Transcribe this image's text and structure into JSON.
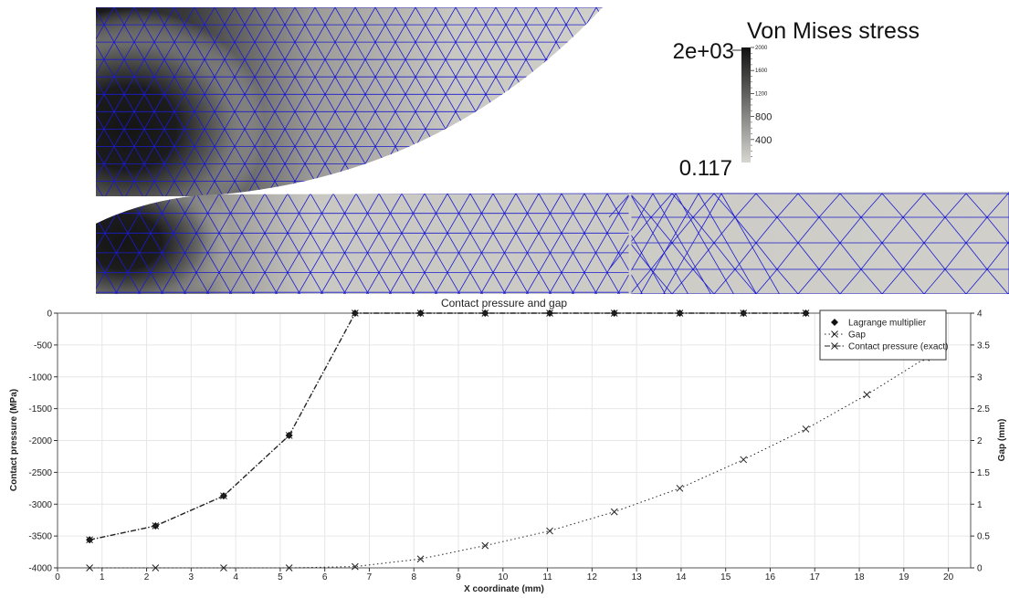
{
  "colorbar": {
    "title": "Von Mises stress",
    "max_label": "2e+03",
    "min_label": "0.117",
    "tick_labels": [
      "2000",
      "1600",
      "1200",
      "800",
      "400"
    ],
    "tick_values": [
      2000,
      1600,
      1200,
      800,
      400
    ],
    "range": [
      0.117,
      2000
    ],
    "gradient": [
      "#111111",
      "#d0cfca"
    ]
  },
  "mesh_colors": {
    "edge": "#1a1ad0",
    "background": "#ffffff"
  },
  "chart_data": {
    "type": "line",
    "title": "Contact pressure and gap",
    "xlabel": "X coordinate (mm)",
    "ylabel_left": "Contact pressure (MPa)",
    "ylabel_right": "Gap (mm)",
    "xlim": [
      0,
      20.5
    ],
    "ylim_left": [
      -4000,
      0
    ],
    "ylim_right": [
      0,
      4
    ],
    "grid": true,
    "legend_position": "top-right",
    "x_ticks": [
      "0",
      "1",
      "2",
      "3",
      "4",
      "5",
      "6",
      "7",
      "8",
      "9",
      "10",
      "11",
      "12",
      "13",
      "14",
      "15",
      "16",
      "17",
      "18",
      "19",
      "20"
    ],
    "y_ticks_left": [
      "0",
      "-500",
      "-1000",
      "-1500",
      "-2000",
      "-2500",
      "-3000",
      "-3500",
      "-4000"
    ],
    "y_ticks_right": [
      "4",
      "3.5",
      "3",
      "2.5",
      "2",
      "1.5",
      "1",
      "0.5",
      "0"
    ],
    "series": [
      {
        "name": "Lagrange multiplier",
        "axis": "left",
        "marker": "diamond",
        "x": [
          0.72,
          2.2,
          3.73,
          5.2,
          6.68,
          8.15,
          9.6,
          11.05,
          12.5,
          13.97,
          15.4,
          16.8
        ],
        "y": [
          -3560,
          -3340,
          -2870,
          -1920,
          0,
          0,
          0,
          0,
          0,
          0,
          0,
          0
        ]
      },
      {
        "name": "Gap",
        "axis": "right",
        "marker": "x",
        "x": [
          0.72,
          2.2,
          3.73,
          5.2,
          6.68,
          8.15,
          9.6,
          11.05,
          12.5,
          13.97,
          15.4,
          16.8,
          18.17,
          19.5
        ],
        "y": [
          0,
          0,
          0,
          0,
          0.02,
          0.14,
          0.35,
          0.58,
          0.88,
          1.25,
          1.7,
          2.18,
          2.72,
          3.3
        ]
      },
      {
        "name": "Contact pressure (exact)",
        "axis": "left",
        "marker": "x",
        "x": [
          0.72,
          2.2,
          3.73,
          5.2,
          6.68,
          8.15,
          9.6,
          11.05,
          12.5,
          13.97,
          15.4,
          16.8
        ],
        "y": [
          -3560,
          -3340,
          -2870,
          -1920,
          0,
          0,
          0,
          0,
          0,
          0,
          0,
          0
        ]
      }
    ]
  }
}
